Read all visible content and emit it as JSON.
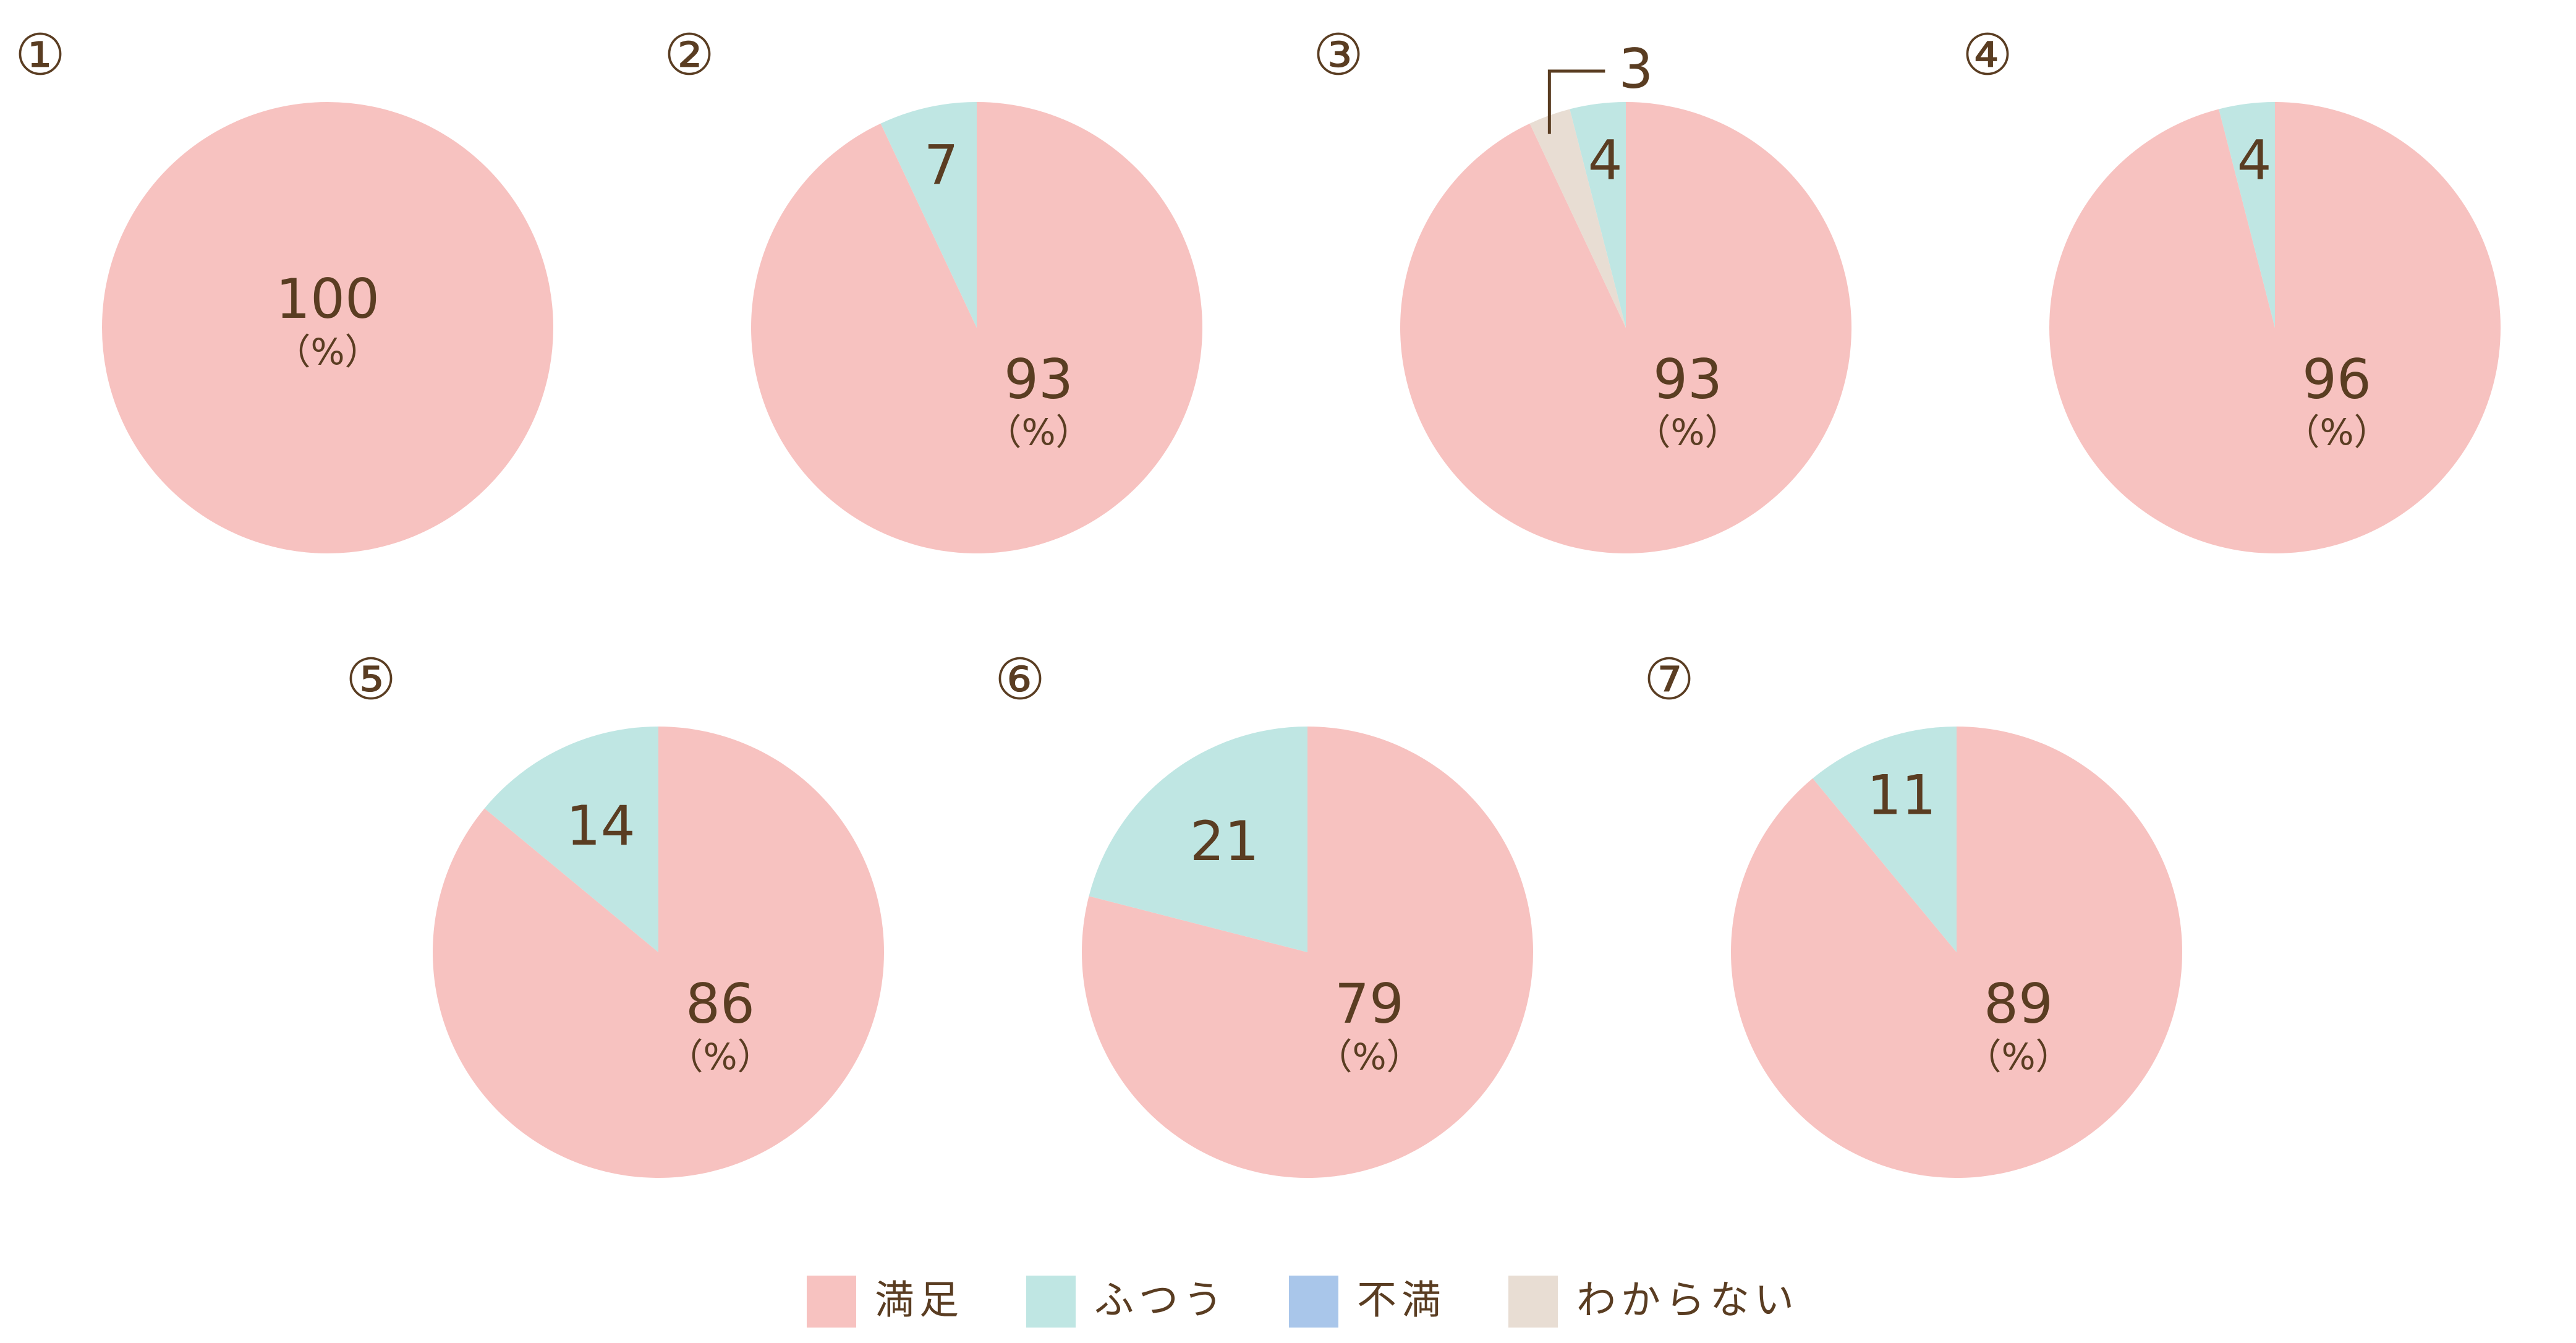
{
  "legend": {
    "items": [
      {
        "key": "satisfied",
        "label": "満足",
        "color": "#f7c2c0"
      },
      {
        "key": "normal",
        "label": "ふつう",
        "color": "#bfe6e3"
      },
      {
        "key": "dissatisfied",
        "label": "不満",
        "color": "#a9c6ea"
      },
      {
        "key": "unknown",
        "label": "わからない",
        "color": "#e8ddd3"
      }
    ]
  },
  "chart_data": [
    {
      "type": "pie",
      "index_label": "①",
      "categories": [
        "満足"
      ],
      "values": [
        100
      ],
      "colors": [
        "#f7c2c0"
      ],
      "center_label": "100",
      "unit_label": "（%）"
    },
    {
      "type": "pie",
      "index_label": "②",
      "categories": [
        "満足",
        "ふつう"
      ],
      "values": [
        93,
        7
      ],
      "colors": [
        "#f7c2c0",
        "#bfe6e3"
      ],
      "center_label": "93",
      "unit_label": "（%）",
      "slice_labels": [
        "",
        "7"
      ]
    },
    {
      "type": "pie",
      "index_label": "③",
      "categories": [
        "満足",
        "ふつう",
        "わからない"
      ],
      "values": [
        93,
        4,
        3
      ],
      "colors": [
        "#f7c2c0",
        "#bfe6e3",
        "#e8ddd3"
      ],
      "center_label": "93",
      "unit_label": "（%）",
      "slice_labels": [
        "",
        "4",
        "3"
      ]
    },
    {
      "type": "pie",
      "index_label": "④",
      "categories": [
        "満足",
        "ふつう"
      ],
      "values": [
        96,
        4
      ],
      "colors": [
        "#f7c2c0",
        "#bfe6e3"
      ],
      "center_label": "96",
      "unit_label": "（%）",
      "slice_labels": [
        "",
        "4"
      ]
    },
    {
      "type": "pie",
      "index_label": "⑤",
      "categories": [
        "満足",
        "ふつう"
      ],
      "values": [
        86,
        14
      ],
      "colors": [
        "#f7c2c0",
        "#bfe6e3"
      ],
      "center_label": "86",
      "unit_label": "（%）",
      "slice_labels": [
        "",
        "14"
      ]
    },
    {
      "type": "pie",
      "index_label": "⑥",
      "categories": [
        "満足",
        "ふつう"
      ],
      "values": [
        79,
        21
      ],
      "colors": [
        "#f7c2c0",
        "#bfe6e3"
      ],
      "center_label": "79",
      "unit_label": "（%）",
      "slice_labels": [
        "",
        "21"
      ]
    },
    {
      "type": "pie",
      "index_label": "⑦",
      "categories": [
        "満足",
        "ふつう"
      ],
      "values": [
        89,
        11
      ],
      "colors": [
        "#f7c2c0",
        "#bfe6e3"
      ],
      "center_label": "89",
      "unit_label": "（%）",
      "slice_labels": [
        "",
        "11"
      ]
    }
  ]
}
